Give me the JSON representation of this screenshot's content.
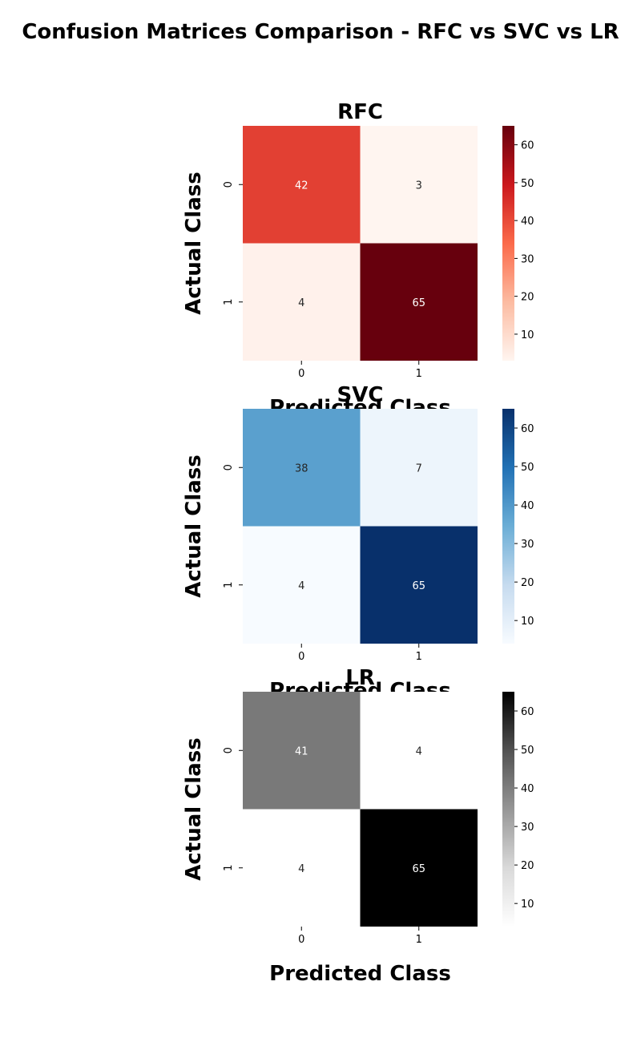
{
  "figure_title": "Confusion Matrices Comparison - RFC vs SVC vs LR",
  "chart_data": [
    {
      "type": "heatmap",
      "title": "RFC",
      "xlabel": "Predicted Class",
      "ylabel": "Actual Class",
      "x_categories": [
        "0",
        "1"
      ],
      "y_categories": [
        "0",
        "1"
      ],
      "matrix": [
        [
          42,
          3
        ],
        [
          4,
          65
        ]
      ],
      "colormap": "Reds",
      "vmin": 3,
      "vmax": 65,
      "colorbar_ticks": [
        10,
        20,
        30,
        40,
        50,
        60
      ],
      "gradient": [
        "#fff5f0",
        "#fcbba1",
        "#fb6a4a",
        "#cb181d",
        "#67000d"
      ]
    },
    {
      "type": "heatmap",
      "title": "SVC",
      "xlabel": "Predicted Class",
      "ylabel": "Actual Class",
      "x_categories": [
        "0",
        "1"
      ],
      "y_categories": [
        "0",
        "1"
      ],
      "matrix": [
        [
          38,
          7
        ],
        [
          4,
          65
        ]
      ],
      "colormap": "Blues",
      "vmin": 4,
      "vmax": 65,
      "colorbar_ticks": [
        10,
        20,
        30,
        40,
        50,
        60
      ],
      "gradient": [
        "#f7fbff",
        "#c6dbef",
        "#6baed6",
        "#2171b5",
        "#08306b"
      ]
    },
    {
      "type": "heatmap",
      "title": "LR",
      "xlabel": "Predicted Class",
      "ylabel": "Actual Class",
      "x_categories": [
        "0",
        "1"
      ],
      "y_categories": [
        "0",
        "1"
      ],
      "matrix": [
        [
          41,
          4
        ],
        [
          4,
          65
        ]
      ],
      "colormap": "Greys",
      "vmin": 4,
      "vmax": 65,
      "colorbar_ticks": [
        10,
        20,
        30,
        40,
        50,
        60
      ],
      "gradient": [
        "#ffffff",
        "#d9d9d9",
        "#969696",
        "#525252",
        "#000000"
      ]
    }
  ]
}
